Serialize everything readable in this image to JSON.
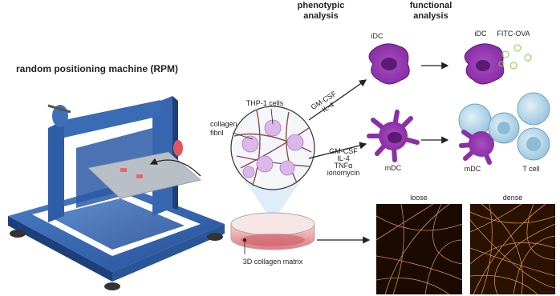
{
  "headers": {
    "phenotypic": [
      "phenotypic",
      "analysis"
    ],
    "functional": [
      "functional",
      "analysis"
    ]
  },
  "machine": "random positioning machine (RPM)",
  "treatments": {
    "idc": [
      "GM-CSF",
      "IL-4"
    ],
    "mdc": [
      "GM-CSF",
      "IL-4",
      "TNFα",
      "ionomycin"
    ]
  },
  "cells": {
    "idc": "iDC",
    "idc_functional": "iDC",
    "antigen": "FITC-OVA",
    "mdc": "mDC",
    "mdc_functional": "mDC",
    "tcell": "T cell"
  },
  "culture": {
    "thp1": "THP-1 cells",
    "fibril": [
      "collagen",
      "fibril"
    ],
    "matrix": "3D collagen matrix"
  },
  "images": {
    "loose": "loose",
    "dense": "dense"
  }
}
